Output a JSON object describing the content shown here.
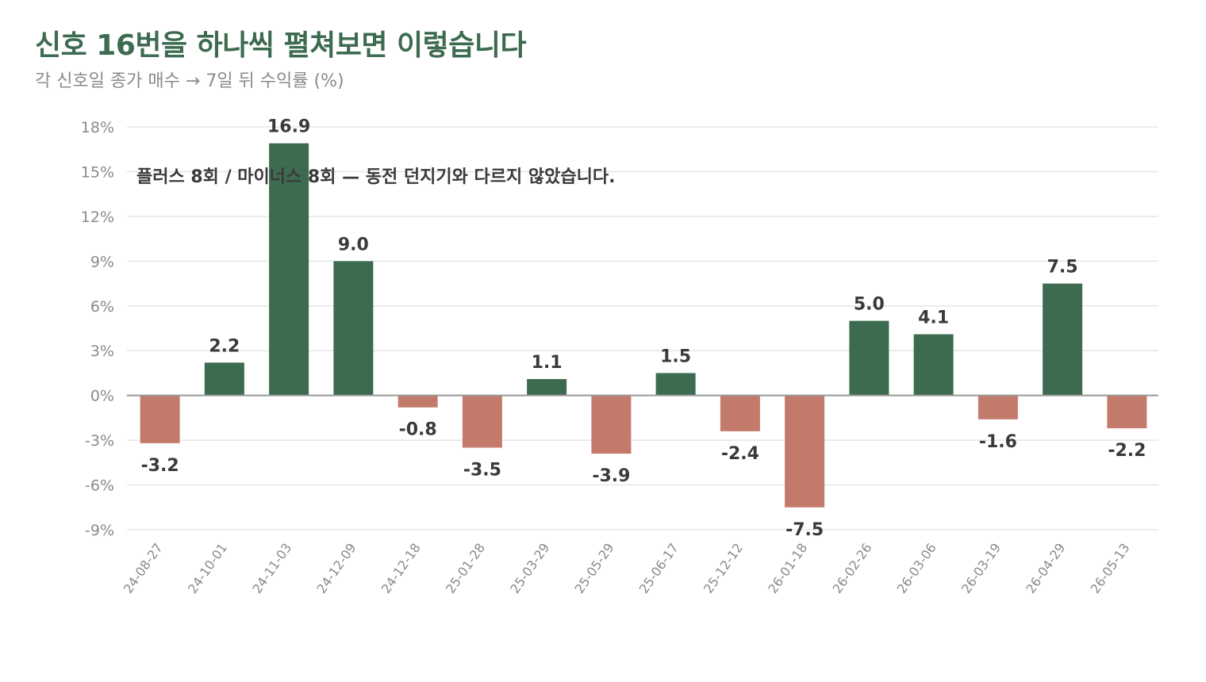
{
  "header": {
    "title": "신호 16번을 하나씩 펼쳐보면 이렇습니다",
    "subtitle": "각 신호일 종가 매수 → 7일 뒤 수익률 (%)"
  },
  "colors": {
    "title": "#3d6b4f",
    "positive": "#3d6b4f",
    "negative": "#c47a6a",
    "grid": "#e6e6e6",
    "zero_line": "#999999",
    "axis_text": "#8a8a8a",
    "value_text": "#3a3a3a"
  },
  "chart_data": {
    "type": "bar",
    "categories": [
      "24-08-27",
      "24-10-01",
      "24-11-03",
      "24-12-09",
      "24-12-18",
      "25-01-28",
      "25-03-29",
      "25-05-29",
      "25-06-17",
      "25-12-12",
      "26-01-18",
      "26-02-26",
      "26-03-06",
      "26-03-19",
      "26-04-29",
      "26-05-13"
    ],
    "values": [
      -3.2,
      2.2,
      16.9,
      9.0,
      -0.8,
      -3.5,
      1.1,
      -3.9,
      1.5,
      -2.4,
      -7.5,
      5.0,
      4.1,
      -1.6,
      7.5,
      -2.2
    ],
    "value_labels": [
      "-3.2",
      "2.2",
      "16.9",
      "9.0",
      "-0.8",
      "-3.5",
      "1.1",
      "-3.9",
      "1.5",
      "-2.4",
      "-7.5",
      "5.0",
      "4.1",
      "-1.6",
      "7.5",
      "-2.2"
    ],
    "ylim": [
      -9,
      18
    ],
    "yticks": [
      18,
      15,
      12,
      9,
      6,
      3,
      0,
      -3,
      -6,
      -9
    ],
    "ytick_labels": [
      "18%",
      "15%",
      "12%",
      "9%",
      "6%",
      "3%",
      "0%",
      "-3%",
      "-6%",
      "-9%"
    ],
    "annotation": "플러스 8회 / 마이너스 8회 — 동전 던지기와 다르지 않았습니다.",
    "grid": true,
    "xlabel": "",
    "ylabel": ""
  }
}
